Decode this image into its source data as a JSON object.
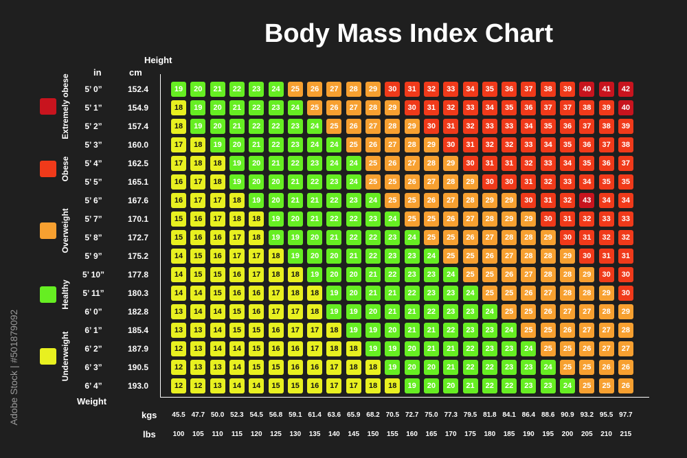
{
  "title": "Body Mass Index Chart",
  "watermark": "Adobe Stock | #501879092",
  "colors": {
    "background": "#1f1f1f",
    "underweight": "#e8f020",
    "healthy": "#66ee22",
    "overweight": "#f7a030",
    "obese": "#f03a1a",
    "extremely_obese": "#c8141e"
  },
  "legend": [
    {
      "label": "Extremely obese",
      "color": "#c8141e"
    },
    {
      "label": "Obese",
      "color": "#f03a1a"
    },
    {
      "label": "Overweight",
      "color": "#f7a030"
    },
    {
      "label": "Healthy",
      "color": "#66ee22"
    },
    {
      "label": "Underweight",
      "color": "#e8f020"
    }
  ],
  "headers": {
    "height": "Height",
    "in": "in",
    "cm": "cm",
    "weight": "Weight",
    "kgs": "kgs",
    "lbs": "lbs"
  },
  "chart_data": {
    "type": "heatmap",
    "title": "Body Mass Index Chart",
    "xlabel": "Weight",
    "ylabel": "Height",
    "heights_in": [
      "5’ 0”",
      "5’ 1”",
      "5’ 2”",
      "5’ 3”",
      "5’ 4”",
      "5’ 5”",
      "5’ 6”",
      "5’ 7”",
      "5’ 8”",
      "5’ 9”",
      "5’ 10”",
      "5’ 11”",
      "6’ 0”",
      "6’ 1”",
      "6’ 2”",
      "6’ 3”",
      "6’ 4”"
    ],
    "heights_cm": [
      "152.4",
      "154.9",
      "157.4",
      "160.0",
      "162.5",
      "165.1",
      "167.6",
      "170.1",
      "172.7",
      "175.2",
      "177.8",
      "180.3",
      "182.8",
      "185.4",
      "187.9",
      "190.5",
      "193.0"
    ],
    "weights_kgs": [
      "45.5",
      "47.7",
      "50.0",
      "52.3",
      "54.5",
      "56.8",
      "59.1",
      "61.4",
      "63.6",
      "65.9",
      "68.2",
      "70.5",
      "72.7",
      "75.0",
      "77.3",
      "79.5",
      "81.8",
      "84.1",
      "86.4",
      "88.6",
      "90.9",
      "93.2",
      "95.5",
      "97.7"
    ],
    "weights_lbs": [
      "100",
      "105",
      "110",
      "115",
      "120",
      "125",
      "130",
      "135",
      "140",
      "145",
      "150",
      "155",
      "160",
      "165",
      "170",
      "175",
      "180",
      "185",
      "190",
      "195",
      "200",
      "205",
      "210",
      "215"
    ],
    "values": [
      [
        19,
        20,
        21,
        22,
        23,
        24,
        25,
        26,
        27,
        28,
        29,
        30,
        31,
        32,
        33,
        34,
        35,
        36,
        37,
        38,
        39,
        40,
        41,
        42
      ],
      [
        18,
        19,
        20,
        21,
        22,
        23,
        24,
        25,
        26,
        27,
        28,
        29,
        30,
        31,
        32,
        33,
        34,
        35,
        36,
        37,
        37,
        38,
        39,
        40
      ],
      [
        18,
        19,
        20,
        21,
        22,
        22,
        23,
        24,
        25,
        26,
        27,
        28,
        29,
        30,
        31,
        32,
        33,
        33,
        34,
        35,
        36,
        37,
        38,
        39
      ],
      [
        17,
        18,
        19,
        20,
        21,
        22,
        23,
        24,
        24,
        25,
        26,
        27,
        28,
        29,
        30,
        31,
        32,
        32,
        33,
        34,
        35,
        36,
        37,
        38
      ],
      [
        17,
        18,
        18,
        19,
        20,
        21,
        22,
        23,
        24,
        24,
        25,
        26,
        27,
        28,
        29,
        30,
        31,
        31,
        32,
        33,
        34,
        35,
        36,
        37
      ],
      [
        16,
        17,
        18,
        19,
        20,
        20,
        21,
        22,
        23,
        24,
        25,
        25,
        26,
        27,
        28,
        29,
        30,
        30,
        31,
        32,
        33,
        34,
        35,
        35
      ],
      [
        16,
        17,
        17,
        18,
        19,
        20,
        21,
        21,
        22,
        23,
        24,
        25,
        25,
        26,
        27,
        28,
        29,
        29,
        30,
        31,
        32,
        43,
        34,
        34
      ],
      [
        15,
        16,
        17,
        18,
        18,
        19,
        20,
        21,
        22,
        22,
        23,
        24,
        25,
        25,
        26,
        27,
        28,
        29,
        29,
        30,
        31,
        32,
        33,
        33
      ],
      [
        15,
        16,
        16,
        17,
        18,
        19,
        19,
        20,
        21,
        22,
        22,
        23,
        24,
        25,
        25,
        26,
        27,
        28,
        28,
        29,
        30,
        31,
        32,
        32
      ],
      [
        14,
        15,
        16,
        17,
        17,
        18,
        19,
        20,
        20,
        21,
        22,
        23,
        23,
        24,
        25,
        25,
        26,
        27,
        28,
        28,
        29,
        30,
        31,
        31
      ],
      [
        14,
        15,
        15,
        16,
        17,
        18,
        18,
        19,
        20,
        20,
        21,
        22,
        23,
        23,
        24,
        25,
        25,
        26,
        27,
        28,
        28,
        29,
        30,
        30
      ],
      [
        14,
        14,
        15,
        16,
        16,
        17,
        18,
        18,
        19,
        20,
        21,
        21,
        22,
        23,
        23,
        24,
        25,
        25,
        26,
        27,
        28,
        28,
        29,
        30
      ],
      [
        13,
        14,
        14,
        15,
        16,
        17,
        17,
        18,
        19,
        19,
        20,
        21,
        21,
        22,
        23,
        23,
        24,
        25,
        25,
        26,
        27,
        27,
        28,
        29
      ],
      [
        13,
        13,
        14,
        15,
        15,
        16,
        17,
        17,
        18,
        19,
        19,
        20,
        21,
        21,
        22,
        23,
        23,
        24,
        25,
        25,
        26,
        27,
        27,
        28
      ],
      [
        12,
        13,
        14,
        14,
        15,
        16,
        16,
        17,
        18,
        18,
        19,
        19,
        20,
        21,
        21,
        22,
        23,
        23,
        24,
        25,
        25,
        26,
        27,
        27
      ],
      [
        12,
        13,
        13,
        14,
        15,
        15,
        16,
        16,
        17,
        18,
        18,
        19,
        20,
        20,
        21,
        22,
        22,
        23,
        23,
        24,
        25,
        25,
        26,
        26
      ],
      [
        12,
        12,
        13,
        14,
        14,
        15,
        15,
        16,
        17,
        17,
        18,
        18,
        19,
        20,
        20,
        21,
        22,
        22,
        23,
        23,
        24,
        25,
        25,
        26
      ]
    ]
  }
}
